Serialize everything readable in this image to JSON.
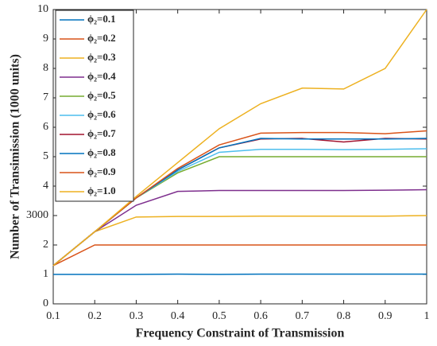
{
  "chart_data": {
    "type": "line",
    "xlabel": "Frequency Constraint of Transmission",
    "ylabel": "Number of Transimission (1000 units)",
    "x": [
      0.1,
      0.2,
      0.3,
      0.4,
      0.5,
      0.6,
      0.7,
      0.8,
      0.9,
      1.0
    ],
    "xlim": [
      0.1,
      1.0
    ],
    "xticks": [
      0.1,
      0.2,
      0.3,
      0.4,
      0.5,
      0.6,
      0.7,
      0.8,
      0.9,
      1
    ],
    "ylim": [
      0,
      10
    ],
    "yticks": [
      0,
      1,
      2,
      {
        "value": 3,
        "label": "3000"
      },
      4,
      5,
      6,
      7,
      8,
      9,
      10
    ],
    "legend": "upper left",
    "series": [
      {
        "name": "ϕ₂=0.1",
        "color": "#0072BD",
        "values": [
          1,
          1,
          1,
          1.01,
          1,
          1.01,
          1.01,
          1.01,
          1.01,
          1.01
        ]
      },
      {
        "name": "ϕ₂=0.2",
        "color": "#D95319",
        "values": [
          1.3,
          2.0,
          2.0,
          2.0,
          2.0,
          2.0,
          2.0,
          2.0,
          2.0,
          2.0
        ]
      },
      {
        "name": "ϕ₂=0.3",
        "color": "#EDB120",
        "values": [
          1.3,
          2.45,
          2.95,
          2.97,
          2.97,
          2.98,
          2.98,
          2.98,
          2.98,
          3.0
        ]
      },
      {
        "name": "ϕ₂=0.4",
        "color": "#7E2F8E",
        "values": [
          1.3,
          2.45,
          3.35,
          3.82,
          3.85,
          3.85,
          3.85,
          3.85,
          3.86,
          3.88
        ]
      },
      {
        "name": "ϕ₂=0.5",
        "color": "#77AC30",
        "values": [
          1.3,
          2.45,
          3.6,
          4.45,
          5.0,
          5.0,
          5.0,
          5.0,
          5.0,
          5.0
        ]
      },
      {
        "name": "ϕ₂=0.6",
        "color": "#4DBEEE",
        "values": [
          1.3,
          2.45,
          3.6,
          4.5,
          5.15,
          5.25,
          5.25,
          5.24,
          5.25,
          5.27
        ]
      },
      {
        "name": "ϕ₂=0.7",
        "color": "#A2142F",
        "values": [
          1.3,
          2.45,
          3.6,
          4.55,
          5.3,
          5.6,
          5.62,
          5.5,
          5.62,
          5.6
        ]
      },
      {
        "name": "ϕ₂=0.8",
        "color": "#0072BD",
        "values": [
          1.3,
          2.45,
          3.6,
          4.55,
          5.3,
          5.62,
          5.6,
          5.6,
          5.6,
          5.62
        ]
      },
      {
        "name": "ϕ₂=0.9",
        "color": "#D95319",
        "values": [
          1.3,
          2.45,
          3.6,
          4.6,
          5.4,
          5.8,
          5.82,
          5.82,
          5.78,
          5.88
        ]
      },
      {
        "name": "ϕ₂=1.0",
        "color": "#EDB120",
        "values": [
          1.3,
          2.45,
          3.65,
          4.8,
          5.95,
          6.8,
          7.33,
          7.3,
          8.0,
          10.0
        ]
      }
    ]
  }
}
